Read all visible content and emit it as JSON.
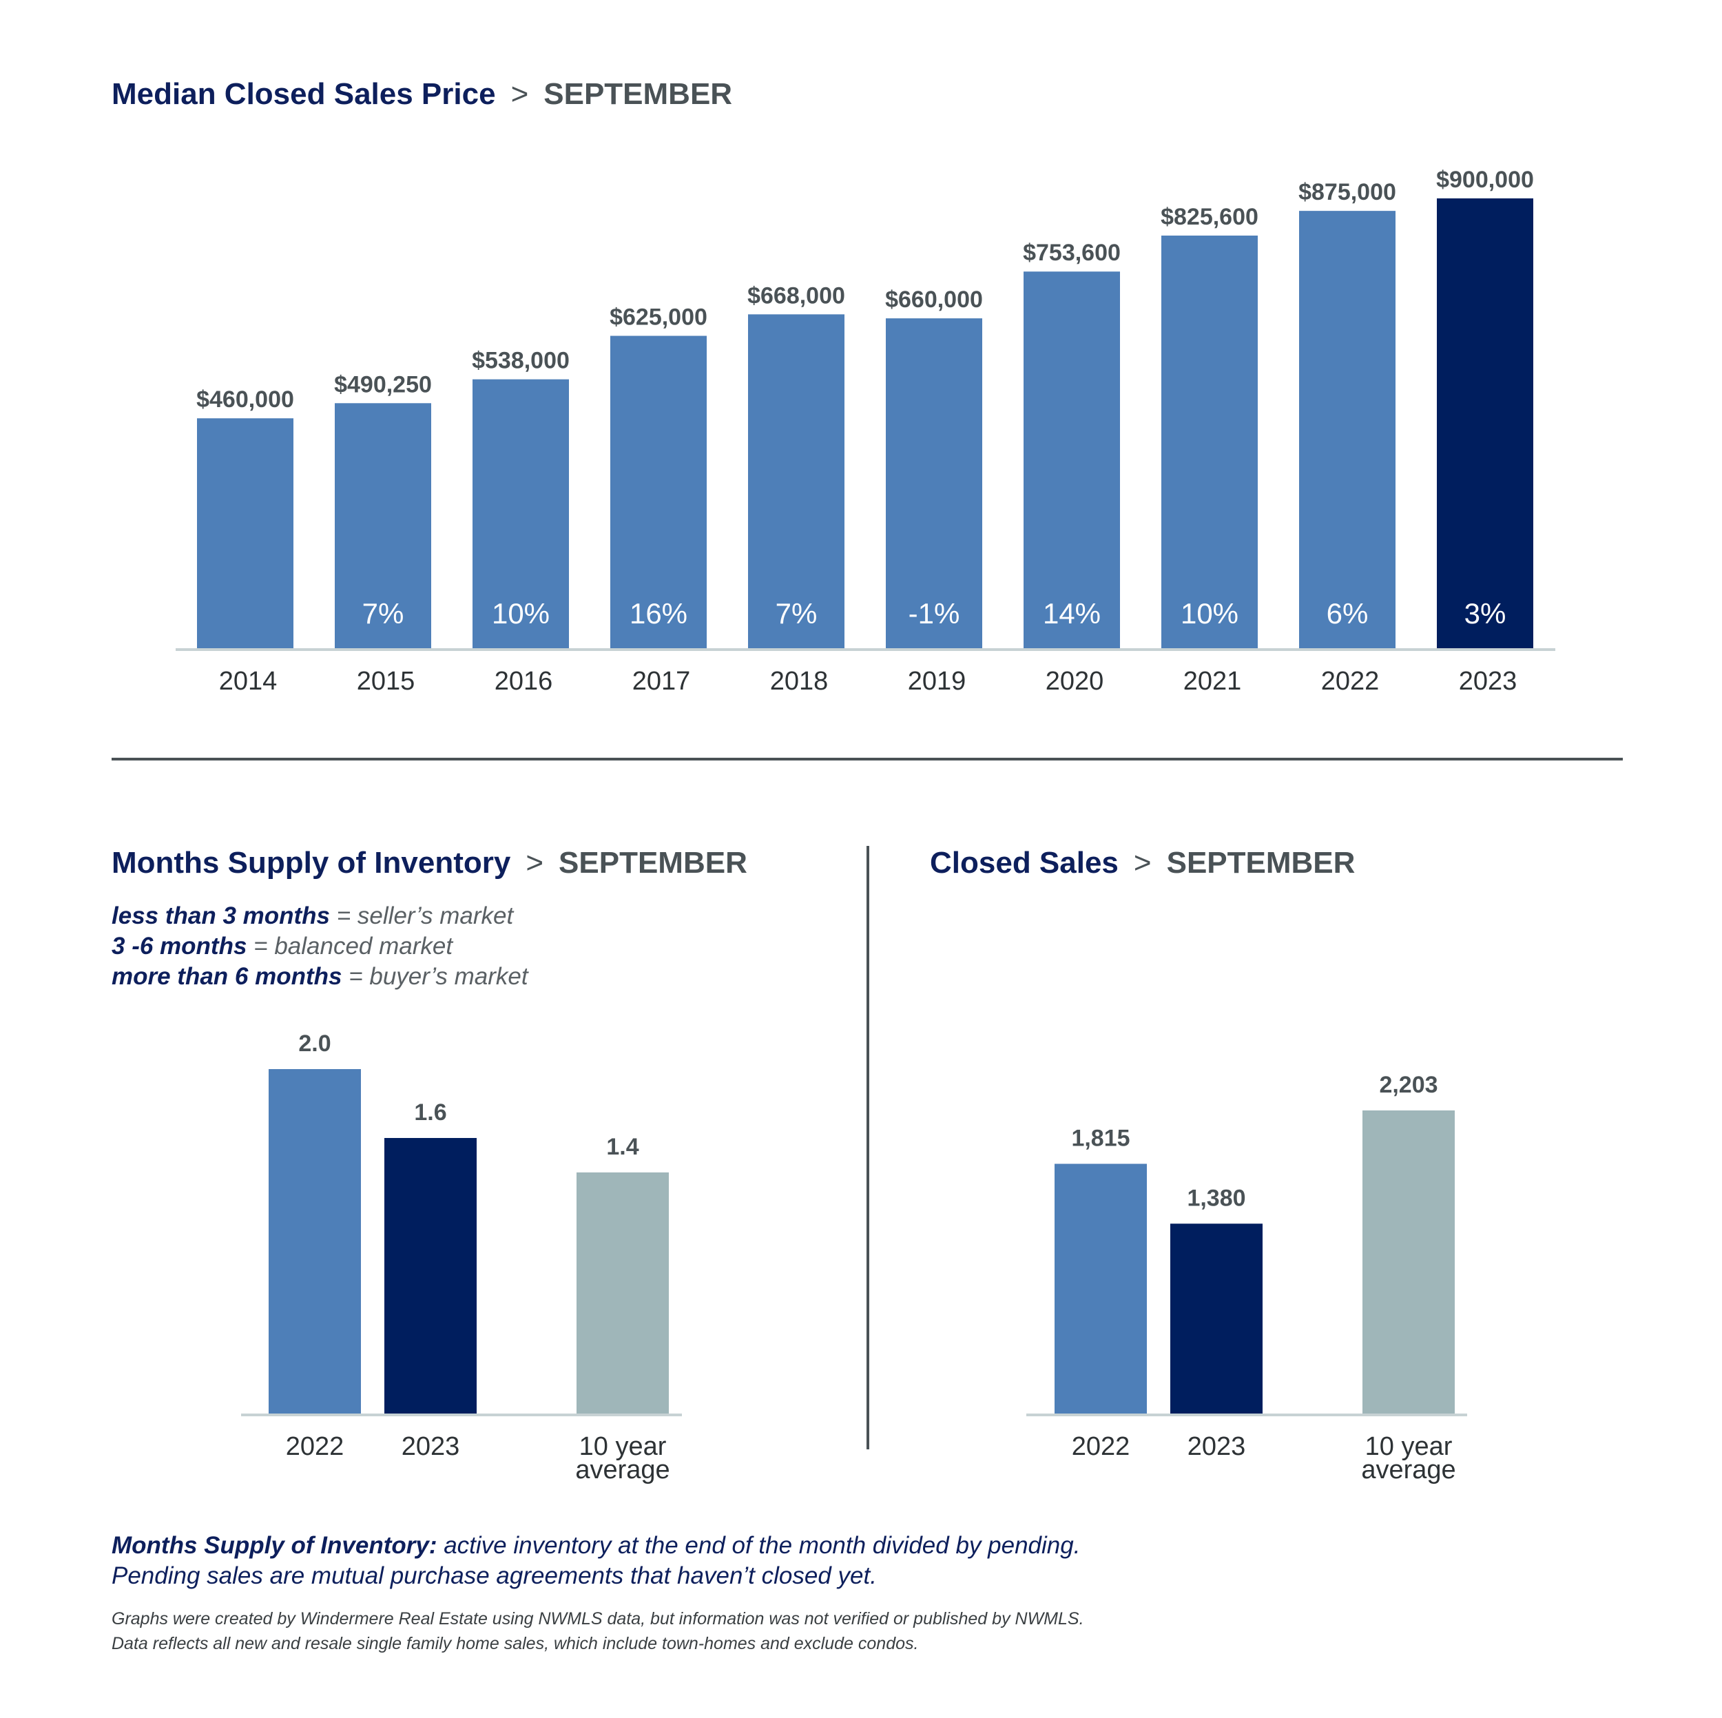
{
  "colors": {
    "bar_prior": "#4e7fb8",
    "bar_current": "#001e5e",
    "bar_average": "#9fb6b9",
    "title_dark": "#0d1f5c",
    "title_gray": "#4a5256",
    "baseline": "#c7d2d4"
  },
  "top": {
    "title_main": "Median Closed Sales Price",
    "title_sep": ">",
    "title_month": "SEPTEMBER"
  },
  "inventory": {
    "title_main": "Months Supply of Inventory",
    "title_sep": ">",
    "title_month": "SEPTEMBER",
    "legend": [
      {
        "key": "less than 3 months",
        "eq": " = ",
        "desc": "seller’s market"
      },
      {
        "key": "3 -6 months",
        "eq": " = ",
        "desc": "balanced market"
      },
      {
        "key": "more than 6 months",
        "eq": " = ",
        "desc": "buyer’s market"
      }
    ]
  },
  "closed": {
    "title_main": "Closed Sales",
    "title_sep": ">",
    "title_month": "SEPTEMBER"
  },
  "notes": {
    "def_term": "Months Supply of Inventory:",
    "def_text": " active inventory at the end of the month divided by pending.",
    "def_line2": "Pending sales are mutual purchase agreements that haven’t closed yet.",
    "source_line1": "Graphs were created by Windermere Real Estate using NWMLS data, but information was not verified or published by NWMLS.",
    "source_line2": "Data reflects all new and resale single family home sales, which include town-homes and exclude condos."
  },
  "chart_data": [
    {
      "type": "bar",
      "title": "Median Closed Sales Price",
      "categories": [
        "2014",
        "2015",
        "2016",
        "2017",
        "2018",
        "2019",
        "2020",
        "2021",
        "2022",
        "2023"
      ],
      "values": [
        460000,
        490250,
        538000,
        625000,
        668000,
        660000,
        753600,
        825600,
        875000,
        900000
      ],
      "value_labels": [
        "$460,000",
        "$490,250",
        "$538,000",
        "$625,000",
        "$668,000",
        "$660,000",
        "$753,600",
        "$825,600",
        "$875,000",
        "$900,000"
      ],
      "change_labels": [
        "",
        "7%",
        "10%",
        "16%",
        "7%",
        "-1%",
        "14%",
        "10%",
        "6%",
        "3%"
      ],
      "ylim": [
        0,
        960000
      ],
      "highlight": "2023"
    },
    {
      "type": "bar",
      "title": "Months Supply of Inventory",
      "categories": [
        "2022",
        "2023",
        "10 year average"
      ],
      "values": [
        2.0,
        1.6,
        1.4
      ],
      "value_labels": [
        "2.0",
        "1.6",
        "1.4"
      ],
      "ylim": [
        0,
        2.0
      ]
    },
    {
      "type": "bar",
      "title": "Closed Sales",
      "categories": [
        "2022",
        "2023",
        "10 year average"
      ],
      "values": [
        1815,
        1380,
        2203
      ],
      "value_labels": [
        "1,815",
        "1,380",
        "2,203"
      ],
      "ylim": [
        0,
        2203
      ]
    }
  ]
}
